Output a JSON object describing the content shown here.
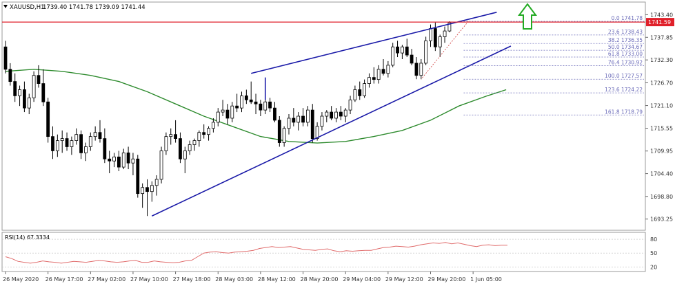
{
  "header": {
    "symbol": "XAUUSD,H1",
    "ohlc": "1739.40 1741.78 1739.09 1741.44"
  },
  "colors": {
    "bull_body": "#ffffff",
    "bear_body": "#000000",
    "candle_outline": "#000000",
    "ma_line": "#2e8b2e",
    "channel": "#1a1aa8",
    "price_line": "#e0202a",
    "price_tag": "#e0202a",
    "fib": "#6a6ab8",
    "rsi": "#e06a6a",
    "arrow": "#22aa22",
    "axis_text": "#333333"
  },
  "chart_data": [
    {
      "type": "candlestick",
      "title": "XAUUSD,H1",
      "subtitle": "1739.40 1741.78 1739.09 1741.44",
      "ylim": [
        1690.5,
        1746.5
      ],
      "y_ticks": [
        "1743.40",
        "1737.85",
        "1732.30",
        "1726.70",
        "1721.10",
        "1715.55",
        "1709.95",
        "1704.40",
        "1698.80",
        "1693.25"
      ],
      "y_tick_values": [
        1743.4,
        1737.85,
        1732.3,
        1726.7,
        1721.1,
        1715.55,
        1709.95,
        1704.4,
        1698.8,
        1693.25
      ],
      "x_ticks": [
        "26 May 2020",
        "26 May 17:00",
        "27 May 02:00",
        "27 May 10:00",
        "27 May 18:00",
        "28 May 03:00",
        "28 May 12:00",
        "28 May 20:00",
        "29 May 04:00",
        "29 May 12:00",
        "29 May 20:00",
        "1 Jun 05:00"
      ],
      "x_tick_index": [
        0,
        9,
        18,
        27,
        36,
        45,
        54,
        63,
        72,
        81,
        90,
        99
      ],
      "current_price": 1741.59,
      "current_price_label": "1741.59",
      "candles": [
        [
          1735.5,
          1737.0,
          1729.0,
          1730.0
        ],
        [
          1730.0,
          1731.5,
          1726.0,
          1727.0
        ],
        [
          1727.0,
          1729.0,
          1722.0,
          1723.5
        ],
        [
          1723.5,
          1726.0,
          1721.0,
          1725.0
        ],
        [
          1725.0,
          1727.0,
          1719.5,
          1720.5
        ],
        [
          1720.5,
          1724.0,
          1719.0,
          1723.0
        ],
        [
          1723.0,
          1729.5,
          1722.0,
          1728.5
        ],
        [
          1728.5,
          1731.0,
          1725.5,
          1726.5
        ],
        [
          1726.5,
          1730.0,
          1721.0,
          1722.0
        ],
        [
          1722.0,
          1723.0,
          1712.0,
          1713.5
        ],
        [
          1713.5,
          1716.0,
          1708.0,
          1710.0
        ],
        [
          1710.0,
          1714.0,
          1708.5,
          1712.5
        ],
        [
          1712.5,
          1715.0,
          1709.5,
          1713.0
        ],
        [
          1713.0,
          1714.5,
          1710.0,
          1711.0
        ],
        [
          1711.0,
          1713.5,
          1709.0,
          1712.5
        ],
        [
          1712.5,
          1715.5,
          1711.5,
          1714.0
        ],
        [
          1714.0,
          1715.0,
          1708.0,
          1709.5
        ],
        [
          1709.5,
          1712.0,
          1707.5,
          1711.0
        ],
        [
          1711.0,
          1714.5,
          1710.0,
          1713.5
        ],
        [
          1713.5,
          1716.0,
          1712.5,
          1714.5
        ],
        [
          1714.5,
          1717.5,
          1712.0,
          1713.0
        ],
        [
          1713.0,
          1715.5,
          1707.0,
          1708.0
        ],
        [
          1708.0,
          1710.0,
          1704.5,
          1707.5
        ],
        [
          1707.5,
          1709.5,
          1706.0,
          1708.5
        ],
        [
          1708.5,
          1710.0,
          1705.0,
          1706.0
        ],
        [
          1706.0,
          1710.5,
          1705.5,
          1709.5
        ],
        [
          1709.5,
          1711.0,
          1705.5,
          1707.0
        ],
        [
          1707.0,
          1709.5,
          1704.0,
          1708.0
        ],
        [
          1708.0,
          1709.0,
          1698.5,
          1699.5
        ],
        [
          1699.5,
          1702.0,
          1696.0,
          1701.0
        ],
        [
          1701.0,
          1703.0,
          1694.0,
          1700.0
        ],
        [
          1700.0,
          1702.5,
          1697.5,
          1701.5
        ],
        [
          1701.5,
          1704.0,
          1699.0,
          1703.0
        ],
        [
          1703.0,
          1711.0,
          1702.0,
          1710.0
        ],
        [
          1710.0,
          1714.5,
          1709.0,
          1713.5
        ],
        [
          1713.5,
          1715.5,
          1711.5,
          1714.0
        ],
        [
          1714.0,
          1717.5,
          1712.0,
          1713.0
        ],
        [
          1713.0,
          1714.5,
          1707.0,
          1708.0
        ],
        [
          1708.0,
          1711.0,
          1704.5,
          1710.0
        ],
        [
          1710.0,
          1712.5,
          1709.0,
          1711.5
        ],
        [
          1711.5,
          1713.0,
          1710.0,
          1712.5
        ],
        [
          1712.5,
          1715.0,
          1711.0,
          1714.5
        ],
        [
          1714.5,
          1716.5,
          1713.0,
          1714.0
        ],
        [
          1714.0,
          1716.0,
          1712.5,
          1715.5
        ],
        [
          1715.5,
          1718.0,
          1714.5,
          1717.0
        ],
        [
          1717.0,
          1720.5,
          1716.0,
          1719.5
        ],
        [
          1719.5,
          1722.5,
          1718.5,
          1720.0
        ],
        [
          1720.0,
          1721.5,
          1716.5,
          1718.0
        ],
        [
          1718.0,
          1722.0,
          1717.0,
          1721.0
        ],
        [
          1721.0,
          1724.0,
          1719.5,
          1720.5
        ],
        [
          1720.5,
          1724.5,
          1719.5,
          1723.5
        ],
        [
          1723.5,
          1725.0,
          1721.5,
          1722.5
        ],
        [
          1722.5,
          1727.0,
          1721.5,
          1722.0
        ],
        [
          1722.0,
          1724.0,
          1719.0,
          1721.5
        ],
        [
          1721.5,
          1722.5,
          1718.5,
          1720.0
        ],
        [
          1720.0,
          1723.0,
          1719.0,
          1722.0
        ],
        [
          1722.0,
          1723.0,
          1719.5,
          1720.5
        ],
        [
          1720.5,
          1722.0,
          1717.0,
          1717.5
        ],
        [
          1717.5,
          1718.5,
          1711.0,
          1712.0
        ],
        [
          1712.0,
          1716.0,
          1711.0,
          1715.5
        ],
        [
          1715.5,
          1719.0,
          1714.0,
          1718.0
        ],
        [
          1718.0,
          1720.5,
          1716.0,
          1717.0
        ],
        [
          1717.0,
          1719.5,
          1715.0,
          1718.5
        ],
        [
          1718.5,
          1720.5,
          1716.0,
          1717.0
        ],
        [
          1717.0,
          1721.0,
          1716.0,
          1720.0
        ],
        [
          1720.0,
          1721.5,
          1712.0,
          1713.0
        ],
        [
          1713.0,
          1717.0,
          1712.5,
          1716.0
        ],
        [
          1716.0,
          1719.5,
          1715.0,
          1718.5
        ],
        [
          1718.5,
          1720.0,
          1717.0,
          1719.5
        ],
        [
          1719.5,
          1721.0,
          1717.5,
          1718.0
        ],
        [
          1718.0,
          1720.5,
          1717.0,
          1719.5
        ],
        [
          1719.5,
          1721.0,
          1717.5,
          1718.5
        ],
        [
          1718.5,
          1720.5,
          1717.0,
          1720.0
        ],
        [
          1720.0,
          1723.5,
          1719.0,
          1722.5
        ],
        [
          1722.5,
          1726.0,
          1722.0,
          1725.0
        ],
        [
          1725.0,
          1727.0,
          1722.5,
          1723.5
        ],
        [
          1723.5,
          1727.5,
          1723.0,
          1726.5
        ],
        [
          1726.5,
          1729.0,
          1725.5,
          1728.0
        ],
        [
          1728.0,
          1730.5,
          1726.5,
          1727.5
        ],
        [
          1727.5,
          1731.0,
          1726.5,
          1730.0
        ],
        [
          1730.0,
          1732.5,
          1728.5,
          1729.0
        ],
        [
          1729.0,
          1732.0,
          1728.0,
          1731.0
        ],
        [
          1731.0,
          1736.5,
          1730.5,
          1735.5
        ],
        [
          1735.5,
          1737.0,
          1733.0,
          1734.0
        ],
        [
          1734.0,
          1736.0,
          1732.5,
          1735.5
        ],
        [
          1735.5,
          1737.5,
          1733.0,
          1733.5
        ],
        [
          1733.5,
          1735.0,
          1731.0,
          1731.5
        ],
        [
          1731.5,
          1733.0,
          1727.57,
          1728.5
        ],
        [
          1728.5,
          1732.5,
          1727.57,
          1731.5
        ],
        [
          1731.5,
          1738.0,
          1731.0,
          1737.0
        ],
        [
          1737.0,
          1741.0,
          1735.5,
          1740.0
        ],
        [
          1740.0,
          1741.5,
          1734.5,
          1735.5
        ],
        [
          1735.5,
          1738.5,
          1733.0,
          1738.0
        ],
        [
          1738.0,
          1740.5,
          1736.5,
          1739.4
        ],
        [
          1739.4,
          1741.78,
          1739.09,
          1741.44
        ]
      ],
      "moving_average": [
        [
          0,
          1729.5
        ],
        [
          6,
          1730.0
        ],
        [
          12,
          1729.5
        ],
        [
          18,
          1728.5
        ],
        [
          24,
          1727.0
        ],
        [
          30,
          1724.5
        ],
        [
          36,
          1721.5
        ],
        [
          42,
          1718.5
        ],
        [
          48,
          1716.0
        ],
        [
          54,
          1713.5
        ],
        [
          60,
          1712.3
        ],
        [
          66,
          1711.9
        ],
        [
          72,
          1712.3
        ],
        [
          78,
          1713.5
        ],
        [
          84,
          1715.0
        ],
        [
          90,
          1717.5
        ],
        [
          96,
          1721.0
        ],
        [
          102,
          1723.5
        ],
        [
          106,
          1725.0
        ]
      ],
      "channel_upper": [
        [
          52,
          1729.0
        ],
        [
          104,
          1744.0
        ]
      ],
      "channel_lower": [
        [
          31,
          1694.0
        ],
        [
          107,
          1735.7
        ]
      ],
      "channel_top_start": [
        [
          55,
          1722.5
        ],
        [
          55,
          1728.0
        ]
      ],
      "fibonacci": [
        {
          "label": "0.0 1741.78",
          "value": 1741.78
        },
        {
          "label": "23.6 1738.43",
          "value": 1738.43
        },
        {
          "label": "38.2 1736.35",
          "value": 1736.35
        },
        {
          "label": "50.0 1734.67",
          "value": 1734.67
        },
        {
          "label": "61.8 1733.00",
          "value": 1733.0
        },
        {
          "label": "76.4 1730.92",
          "value": 1730.92
        },
        {
          "label": "100.0 1727.57",
          "value": 1727.57
        },
        {
          "label": "123.6 1724.22",
          "value": 1724.22
        },
        {
          "label": "161.8 1718.79",
          "value": 1718.79
        }
      ]
    },
    {
      "type": "line",
      "title": "RSI(14) 67.3334",
      "ylim": [
        10,
        95
      ],
      "y_ticks": [
        "80",
        "50",
        "20"
      ],
      "y_tick_values": [
        80,
        50,
        20
      ],
      "values": [
        42,
        38,
        32,
        30,
        28,
        30,
        33,
        31,
        30,
        28,
        30,
        32,
        31,
        30,
        32,
        34,
        33,
        31,
        30,
        31,
        33,
        34,
        30,
        30,
        33,
        31,
        30,
        29,
        30,
        33,
        34,
        42,
        50,
        52,
        53,
        51,
        50,
        52,
        53,
        54,
        56,
        60,
        62,
        64,
        62,
        63,
        64,
        61,
        58,
        57,
        56,
        58,
        59,
        55,
        53,
        55,
        54,
        55,
        56,
        56,
        59,
        62,
        63,
        65,
        64,
        63,
        65,
        68,
        70,
        72,
        71,
        73,
        70,
        72,
        69,
        66,
        64,
        67,
        68,
        66,
        67,
        67
      ]
    }
  ],
  "rsi_label": "RSI(14) 67.3334"
}
